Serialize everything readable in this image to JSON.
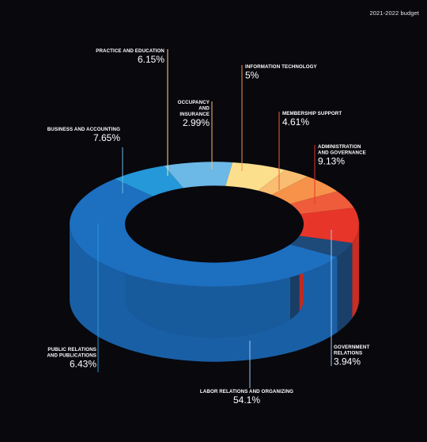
{
  "header": {
    "label": "2021-2022 budget"
  },
  "chart_data": {
    "type": "pie",
    "variant": "3d-donut",
    "title": "",
    "unit": "%",
    "colors": {
      "background": "#08080d",
      "label": "#ffffff"
    },
    "slices": [
      {
        "label": "LABOR RELATIONS AND ORGANIZING",
        "value": 54.1,
        "display": "54.1%",
        "color": "#1d6fc0"
      },
      {
        "label": "PUBLIC RELATIONS AND PUBLICATIONS",
        "value": 6.43,
        "display": "6.43%",
        "color": "#2498d8"
      },
      {
        "label": "BUSINESS AND ACCOUNTING",
        "value": 7.65,
        "display": "7.65%",
        "color": "#6cb8e6"
      },
      {
        "label": "PRACTICE AND EDUCATION",
        "value": 6.15,
        "display": "6.15%",
        "color": "#fbdf8c"
      },
      {
        "label": "OCCUPANCY AND INSURANCE",
        "value": 2.99,
        "display": "2.99%",
        "color": "#f8bd70"
      },
      {
        "label": "INFORMATION TECHNOLOGY",
        "value": 5,
        "display": "5%",
        "color": "#f6924a"
      },
      {
        "label": "MEMBERSHIP SUPPORT",
        "value": 4.61,
        "display": "4.61%",
        "color": "#ee5c3c"
      },
      {
        "label": "ADMINISTRATION AND GOVERNANCE",
        "value": 9.13,
        "display": "9.13%",
        "color": "#e8352a"
      },
      {
        "label": "GOVERNMENT RELATIONS",
        "value": 3.94,
        "display": "3.94%",
        "color": "#1e4a7a"
      }
    ]
  }
}
